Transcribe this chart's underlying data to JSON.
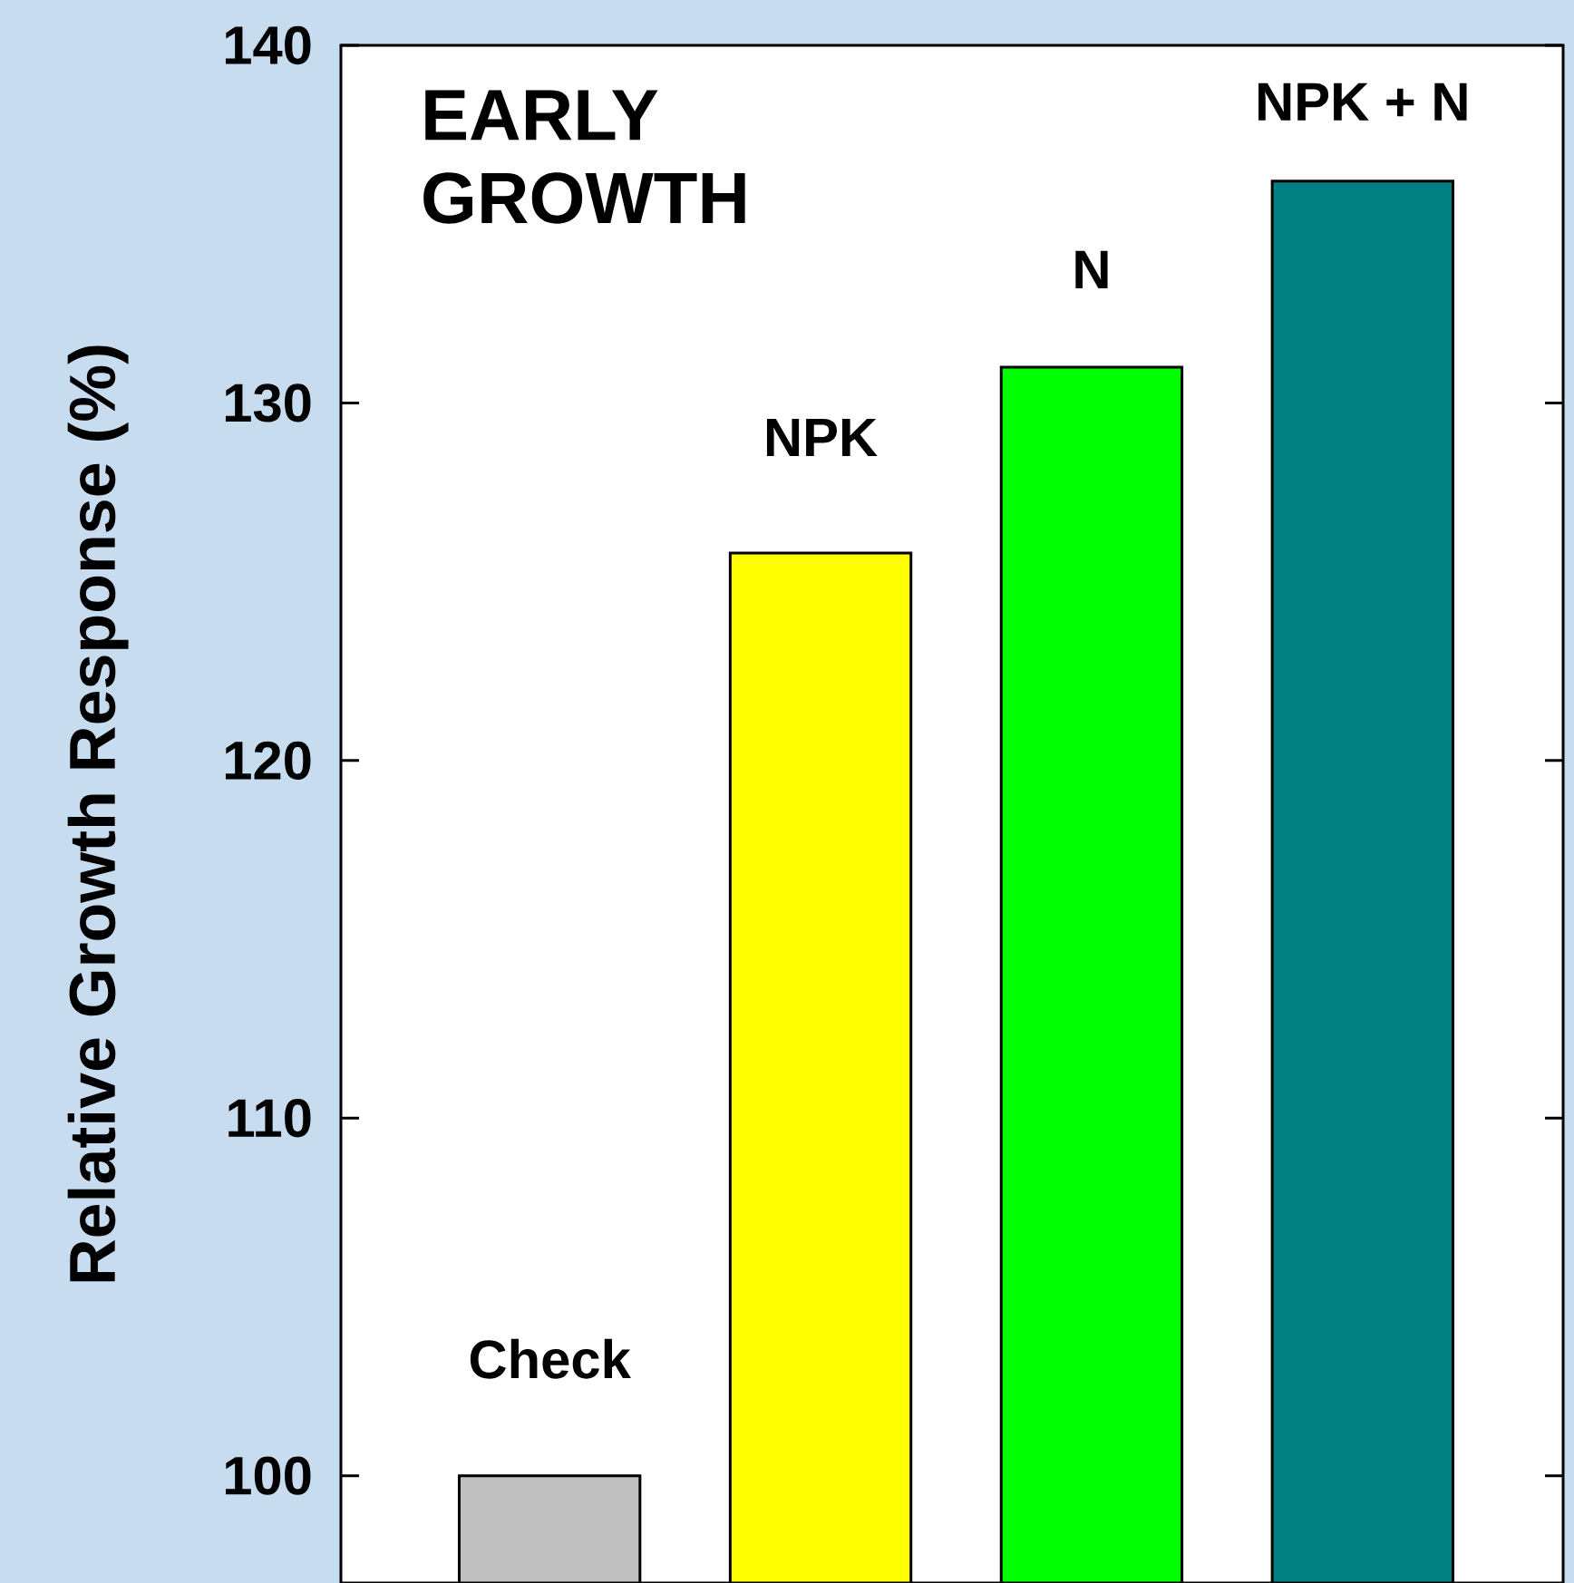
{
  "chart_data": {
    "type": "bar",
    "ylabel": "Relative Growth Response (%)",
    "annotations": [
      "EARLY GROWTH"
    ],
    "categories": [
      "Check",
      "NPK",
      "N",
      "NPK + N"
    ],
    "values": [
      100,
      125.8,
      131,
      136.2
    ],
    "colors": [
      "#c0c0c0",
      "#ffff00",
      "#00ff00",
      "#008080"
    ],
    "ylim": [
      97,
      140
    ],
    "yticks": [
      100,
      110,
      120,
      130,
      140
    ],
    "tick_labels": "y",
    "grid": false
  }
}
